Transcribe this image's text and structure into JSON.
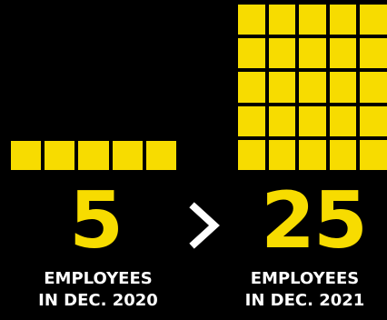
{
  "left": {
    "number": "5",
    "square_count": 5,
    "caption_line1": "EMPLOYEES",
    "caption_line2": "IN DEC. 2020"
  },
  "right": {
    "number": "25",
    "square_count": 25,
    "caption_line1": "EMPLOYEES",
    "caption_line2": "IN DEC. 2021"
  },
  "separator_icon": "chevron-right-icon",
  "colors": {
    "background": "#000000",
    "accent": "#f7dc00",
    "caption_text": "#ffffff"
  }
}
